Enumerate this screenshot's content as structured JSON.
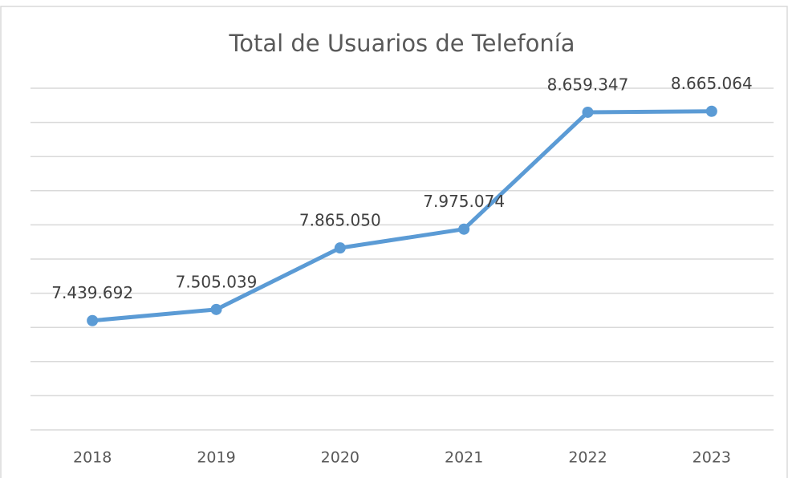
{
  "chart_data": {
    "type": "line",
    "title": "Total de Usuarios de Telefonía",
    "categories": [
      "2018",
      "2019",
      "2020",
      "2021",
      "2022",
      "2023"
    ],
    "series": [
      {
        "name": "Total de Usuarios de Telefonía",
        "color": "#5b9bd5",
        "values": [
          7439692,
          7505039,
          7865050,
          7975074,
          8659347,
          8665064
        ],
        "value_labels": [
          "7.439.692",
          "7.505.039",
          "7.865.050",
          "7.975.074",
          "8.659.347",
          "8.665.064"
        ]
      }
    ],
    "ylim": [
      6800000,
      8800000
    ],
    "yticks": [
      6800000,
      7000000,
      7200000,
      7400000,
      7600000,
      7800000,
      8000000,
      8200000,
      8400000,
      8600000,
      8800000
    ],
    "grid": true
  }
}
